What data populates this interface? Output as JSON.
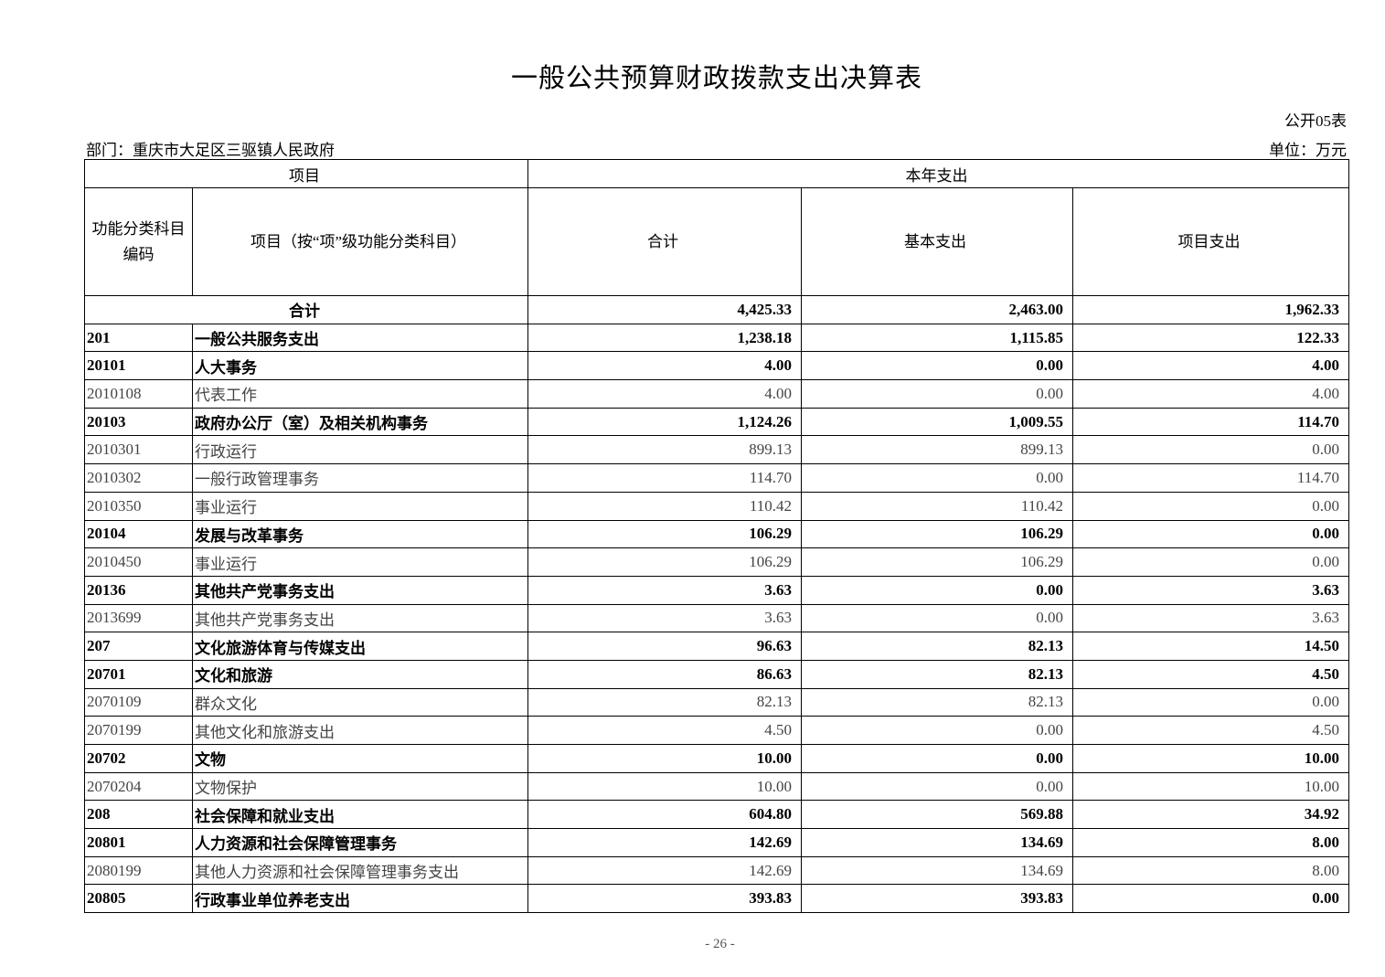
{
  "title": "一般公共预算财政拨款支出决算表",
  "form_no": "公开05表",
  "department": "部门：重庆市大足区三驱镇人民政府",
  "unit": "单位：万元",
  "header": {
    "group_item": "项目",
    "group_current": "本年支出",
    "code": "功能分类科目编码",
    "name": "项目（按“项”级功能分类科目）",
    "total": "合计",
    "basic": "基本支出",
    "project": "项目支出"
  },
  "total_row": {
    "label": "合计",
    "total": "4,425.33",
    "basic": "2,463.00",
    "project": "1,962.33"
  },
  "rows": [
    {
      "code": "201",
      "name": "一般公共服务支出",
      "total": "1,238.18",
      "basic": "1,115.85",
      "project": "122.33",
      "bold": true
    },
    {
      "code": "20101",
      "name": "人大事务",
      "total": "4.00",
      "basic": "0.00",
      "project": "4.00",
      "bold": true
    },
    {
      "code": "2010108",
      "name": "代表工作",
      "total": "4.00",
      "basic": "0.00",
      "project": "4.00",
      "bold": false
    },
    {
      "code": "20103",
      "name": "政府办公厅（室）及相关机构事务",
      "total": "1,124.26",
      "basic": "1,009.55",
      "project": "114.70",
      "bold": true
    },
    {
      "code": "2010301",
      "name": "行政运行",
      "total": "899.13",
      "basic": "899.13",
      "project": "0.00",
      "bold": false
    },
    {
      "code": "2010302",
      "name": "一般行政管理事务",
      "total": "114.70",
      "basic": "0.00",
      "project": "114.70",
      "bold": false
    },
    {
      "code": "2010350",
      "name": "事业运行",
      "total": "110.42",
      "basic": "110.42",
      "project": "0.00",
      "bold": false
    },
    {
      "code": "20104",
      "name": "发展与改革事务",
      "total": "106.29",
      "basic": "106.29",
      "project": "0.00",
      "bold": true
    },
    {
      "code": "2010450",
      "name": "事业运行",
      "total": "106.29",
      "basic": "106.29",
      "project": "0.00",
      "bold": false
    },
    {
      "code": "20136",
      "name": "其他共产党事务支出",
      "total": "3.63",
      "basic": "0.00",
      "project": "3.63",
      "bold": true
    },
    {
      "code": "2013699",
      "name": "其他共产党事务支出",
      "total": "3.63",
      "basic": "0.00",
      "project": "3.63",
      "bold": false
    },
    {
      "code": "207",
      "name": "文化旅游体育与传媒支出",
      "total": "96.63",
      "basic": "82.13",
      "project": "14.50",
      "bold": true
    },
    {
      "code": "20701",
      "name": "文化和旅游",
      "total": "86.63",
      "basic": "82.13",
      "project": "4.50",
      "bold": true
    },
    {
      "code": "2070109",
      "name": "群众文化",
      "total": "82.13",
      "basic": "82.13",
      "project": "0.00",
      "bold": false
    },
    {
      "code": "2070199",
      "name": "其他文化和旅游支出",
      "total": "4.50",
      "basic": "0.00",
      "project": "4.50",
      "bold": false
    },
    {
      "code": "20702",
      "name": "文物",
      "total": "10.00",
      "basic": "0.00",
      "project": "10.00",
      "bold": true
    },
    {
      "code": "2070204",
      "name": "文物保护",
      "total": "10.00",
      "basic": "0.00",
      "project": "10.00",
      "bold": false
    },
    {
      "code": "208",
      "name": "社会保障和就业支出",
      "total": "604.80",
      "basic": "569.88",
      "project": "34.92",
      "bold": true
    },
    {
      "code": "20801",
      "name": "人力资源和社会保障管理事务",
      "total": "142.69",
      "basic": "134.69",
      "project": "8.00",
      "bold": true
    },
    {
      "code": "2080199",
      "name": "其他人力资源和社会保障管理事务支出",
      "total": "142.69",
      "basic": "134.69",
      "project": "8.00",
      "bold": false
    },
    {
      "code": "20805",
      "name": "行政事业单位养老支出",
      "total": "393.83",
      "basic": "393.83",
      "project": "0.00",
      "bold": true
    }
  ],
  "page_number": "- 26 -"
}
